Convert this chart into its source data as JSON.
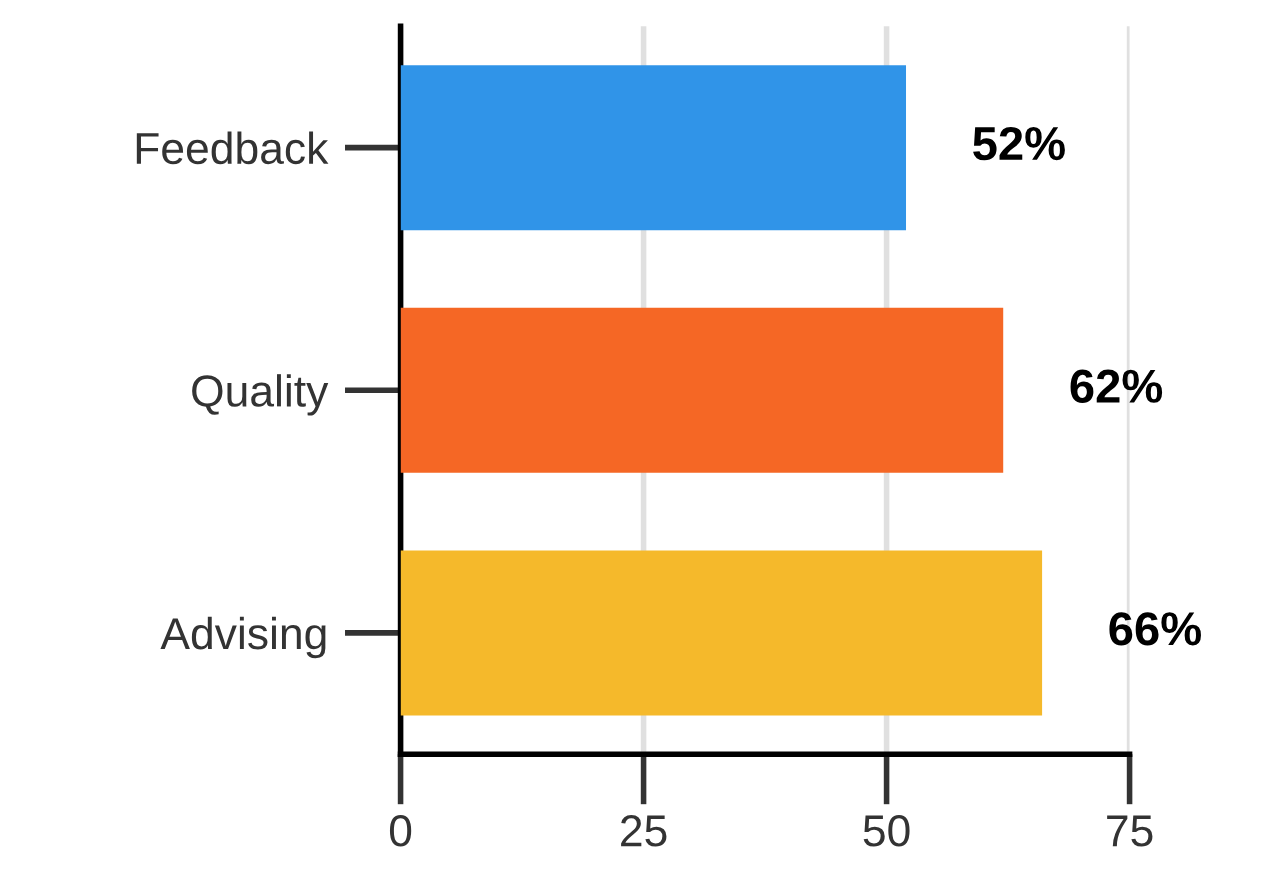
{
  "chart_data": {
    "type": "bar",
    "orientation": "horizontal",
    "categories": [
      "Feedback",
      "Quality",
      "Advising"
    ],
    "values": [
      52,
      62,
      66
    ],
    "colors": [
      "#3094e8",
      "#f56725",
      "#f5b92b"
    ],
    "value_labels": [
      "52%",
      "62%",
      "66%"
    ],
    "xlim": [
      0,
      75
    ],
    "xticks": [
      0,
      25,
      50,
      75
    ],
    "grid": "x",
    "legend": false
  }
}
